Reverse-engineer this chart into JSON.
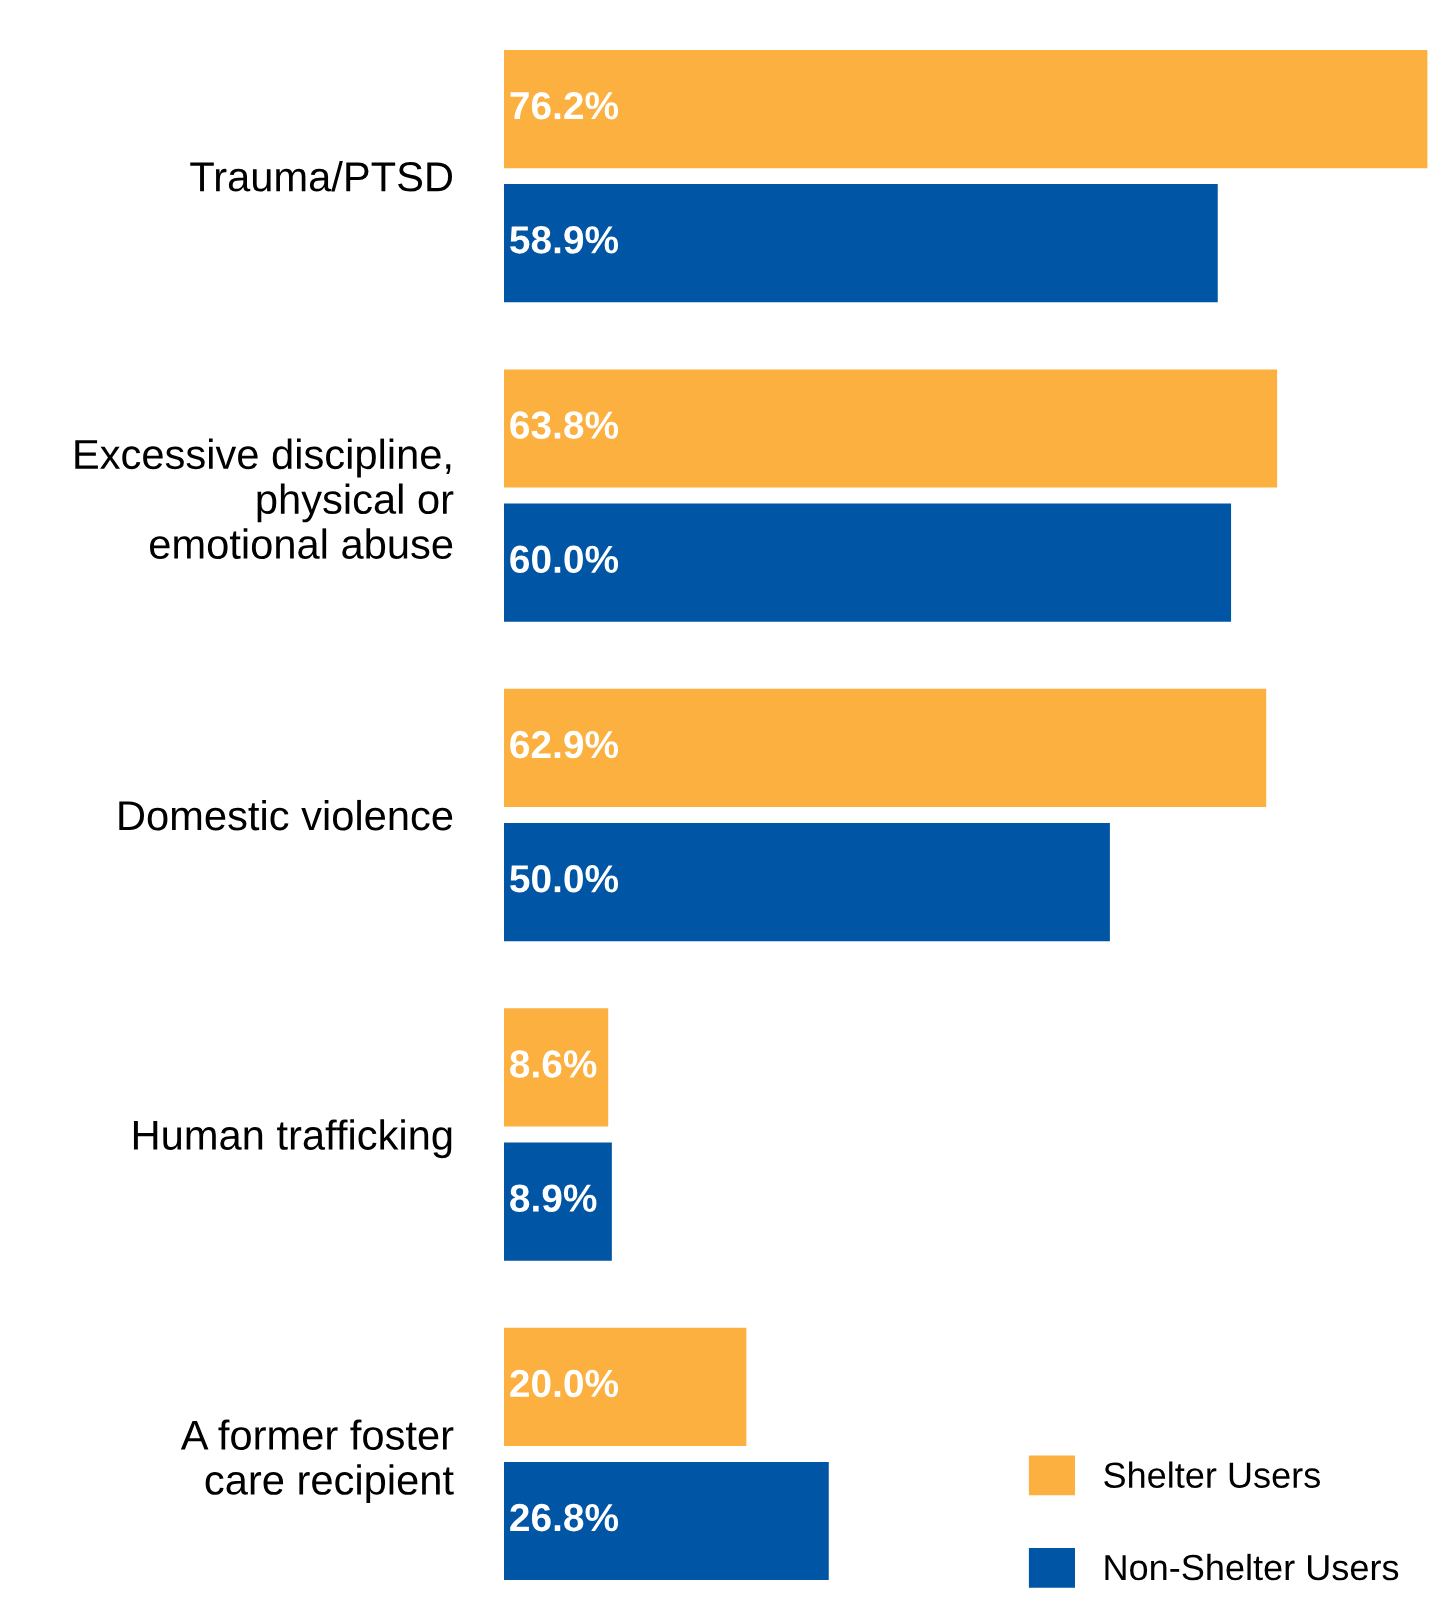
{
  "chart_data": {
    "type": "bar",
    "orientation": "horizontal",
    "categories": [
      "Trauma/PTSD",
      "Excessive discipline,\nphysical or\nemotional abuse",
      "Domestic violence",
      "Human trafficking",
      "A former foster\ncare recipient"
    ],
    "series": [
      {
        "name": "Shelter Users",
        "color": "#fbb040",
        "values": [
          76.2,
          63.8,
          62.9,
          8.6,
          20.0
        ],
        "value_labels": [
          "76.2%",
          "63.8%",
          "62.9%",
          "8.6%",
          "20.0%"
        ]
      },
      {
        "name": "Non-Shelter Users",
        "color": "#0055a5",
        "values": [
          58.9,
          60.0,
          50.0,
          8.9,
          26.8
        ],
        "value_labels": [
          "58.9%",
          "60.0%",
          "50.0%",
          "8.9%",
          "26.8%"
        ]
      }
    ],
    "legend": "bottom right",
    "grid": false,
    "tick_labels": "y"
  }
}
